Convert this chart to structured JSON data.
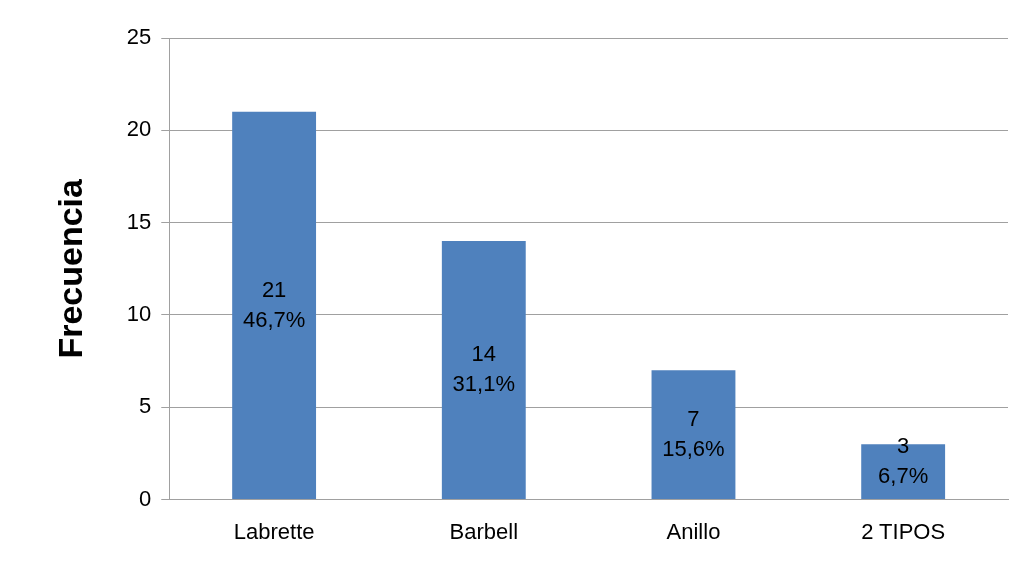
{
  "chart_data": {
    "type": "bar",
    "ylabel": "Frecuencia",
    "categories": [
      "Labrette",
      "Barbell",
      "Anillo",
      "2 TIPOS"
    ],
    "values": [
      21,
      14,
      7,
      3
    ],
    "value_labels": [
      "21\n46,7%",
      "14\n31,1%",
      "7\n15,6%",
      "3\n6,7%"
    ],
    "color": "#4f81bd",
    "ylim": [
      0,
      25
    ],
    "yticks": [
      0,
      5,
      10,
      15,
      20,
      25
    ],
    "grid": "y",
    "legend": false
  }
}
